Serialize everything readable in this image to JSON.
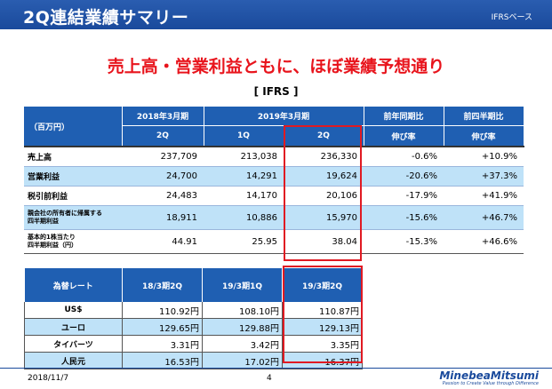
{
  "header": {
    "title": "2Q連結業績サマリー",
    "note": "IFRSベース"
  },
  "subheadline": "売上高・営業利益ともに、ほぼ業績予想通り",
  "ifrs_label": "[ IFRS ]",
  "main_table": {
    "corner": "（百万円）",
    "period_headers": [
      "2018年3月期",
      "2019年3月期",
      "前年同期比",
      "前四半期比"
    ],
    "sub_headers": [
      "2Q",
      "1Q",
      "2Q",
      "伸び率",
      "伸び率"
    ],
    "rows": [
      {
        "label": "売上高",
        "values": [
          "237,709",
          "213,038",
          "236,330",
          "-0.6%",
          "+10.9%"
        ]
      },
      {
        "label": "営業利益",
        "values": [
          "24,700",
          "14,291",
          "19,624",
          "-20.6%",
          "+37.3%"
        ]
      },
      {
        "label": "税引前利益",
        "values": [
          "24,483",
          "14,170",
          "20,106",
          "-17.9%",
          "+41.9%"
        ]
      },
      {
        "label_line1": "親会社の所有者に帰属する",
        "label_line2": "四半期利益",
        "values": [
          "18,911",
          "10,886",
          "15,970",
          "-15.6%",
          "+46.7%"
        ]
      },
      {
        "label_line1": "基本的1株当たり",
        "label_line2": "四半期利益（円）",
        "values": [
          "44.91",
          "25.95",
          "38.04",
          "-15.3%",
          "+46.6%"
        ]
      }
    ]
  },
  "fx_table": {
    "headers": [
      "為替レート",
      "18/3期2Q",
      "19/3期1Q",
      "19/3期2Q"
    ],
    "rows": [
      {
        "label": "US$",
        "values": [
          "110.92円",
          "108.10円",
          "110.87円"
        ]
      },
      {
        "label": "ユーロ",
        "values": [
          "129.65円",
          "129.88円",
          "129.13円"
        ]
      },
      {
        "label": "タイバーツ",
        "values": [
          "3.31円",
          "3.42円",
          "3.35円"
        ]
      },
      {
        "label": "人民元",
        "values": [
          "16.53円",
          "17.02円",
          "16.37円"
        ]
      }
    ]
  },
  "footer": {
    "date": "2018/11/7",
    "page": "4",
    "logo": "MinebeaMitsumi",
    "tagline": "Passion to Create Value through Difference"
  },
  "colors": {
    "header_blue": "#1f5fb2",
    "highlight_red": "#e01a22",
    "row_alt": "#bfe2f8",
    "subheadline_red": "#e8141c"
  }
}
